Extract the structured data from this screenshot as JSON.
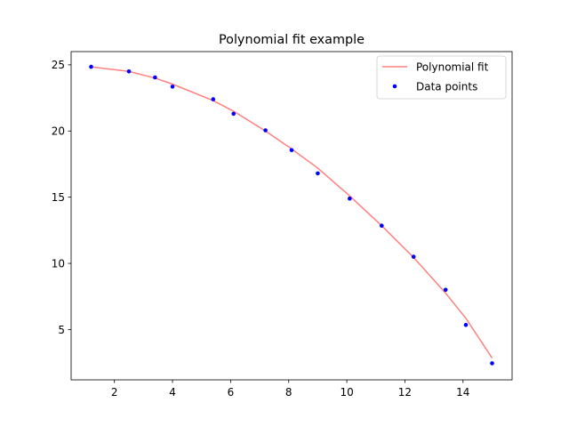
{
  "chart_data": {
    "type": "scatter",
    "title": "Polynomial fit example",
    "xlabel": "",
    "ylabel": "",
    "xlim": [
      0.51,
      15.69
    ],
    "ylim": [
      1.2,
      26.0
    ],
    "xticks": [
      2,
      4,
      6,
      8,
      10,
      12,
      14
    ],
    "yticks": [
      5,
      10,
      15,
      20,
      25
    ],
    "grid": false,
    "legend_position": "top-right",
    "series": [
      {
        "name": "Polynomial fit",
        "kind": "line",
        "color": "#ff8080",
        "x": [
          1.2,
          2.5,
          3.4,
          4.0,
          5.4,
          6.1,
          7.2,
          8.1,
          9.0,
          10.1,
          11.2,
          12.3,
          13.4,
          14.1,
          15.0
        ],
        "y": [
          24.85,
          24.5,
          24.0,
          23.55,
          22.3,
          21.5,
          20.0,
          18.65,
          17.2,
          15.1,
          12.85,
          10.45,
          7.75,
          5.85,
          2.85
        ]
      },
      {
        "name": "Data points",
        "kind": "scatter",
        "color": "#0000ff",
        "x": [
          1.2,
          2.5,
          3.4,
          4.0,
          5.4,
          6.1,
          7.2,
          8.1,
          9.0,
          10.1,
          11.2,
          12.3,
          13.4,
          14.1,
          15.0
        ],
        "y": [
          24.85,
          24.5,
          24.05,
          23.35,
          22.4,
          21.3,
          20.05,
          18.55,
          16.8,
          14.9,
          12.85,
          10.5,
          8.0,
          5.35,
          2.45
        ]
      }
    ]
  }
}
